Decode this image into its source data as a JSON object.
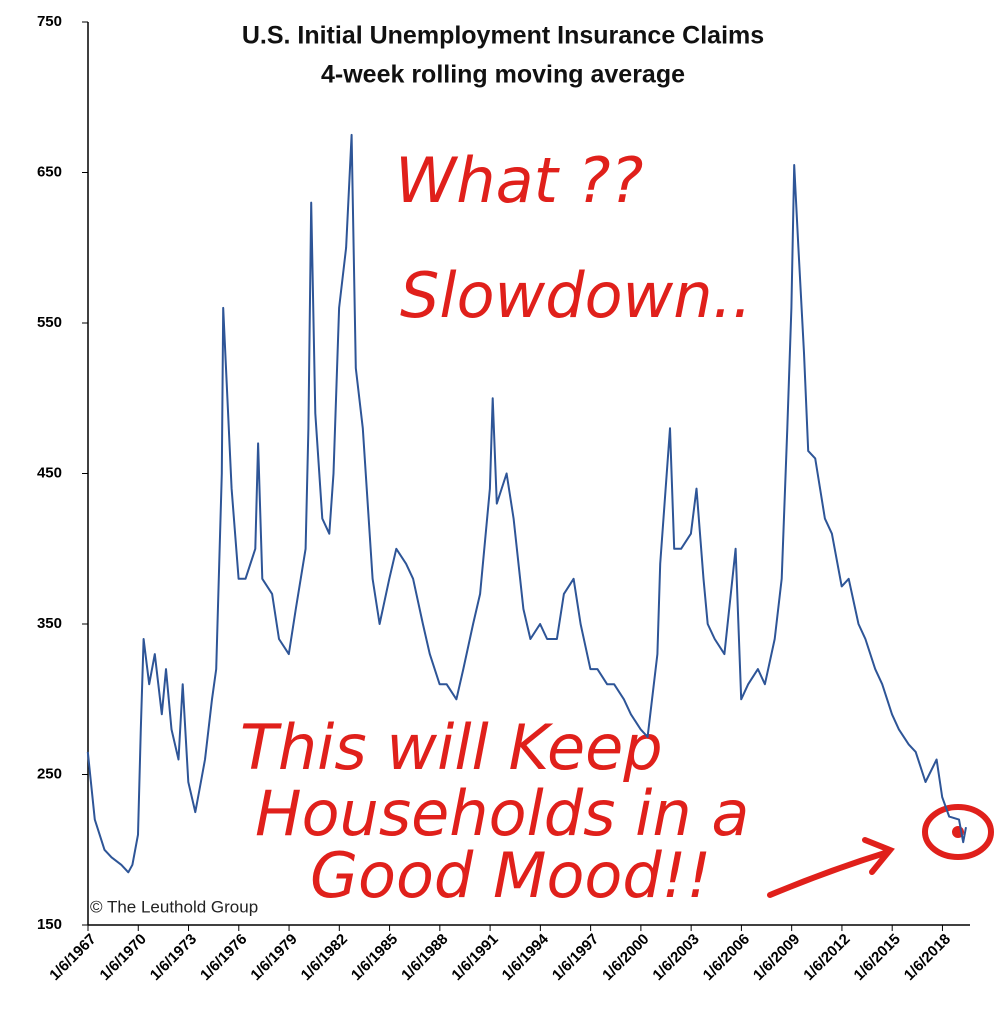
{
  "chart_data": {
    "type": "line",
    "title": "U.S. Initial Unemployment Insurance Claims",
    "subtitle": "4-week rolling moving average",
    "source": "© The Leuthold Group",
    "annotations": [
      "What ??",
      "Slowdown..",
      "This will Keep",
      "Households in a",
      "Good Mood!!"
    ],
    "x": [
      "1967-01",
      "1967-06",
      "1968-01",
      "1968-06",
      "1969-01",
      "1969-06",
      "1969-09",
      "1970-01",
      "1970-03",
      "1970-05",
      "1970-09",
      "1971-01",
      "1971-06",
      "1971-09",
      "1972-01",
      "1972-06",
      "1972-09",
      "1973-01",
      "1973-06",
      "1973-09",
      "1974-01",
      "1974-06",
      "1974-09",
      "1975-01",
      "1975-02",
      "1975-05",
      "1975-08",
      "1976-01",
      "1976-06",
      "1977-01",
      "1977-03",
      "1977-06",
      "1978-01",
      "1978-06",
      "1979-01",
      "1979-06",
      "1980-01",
      "1980-03",
      "1980-05",
      "1980-08",
      "1981-01",
      "1981-06",
      "1981-09",
      "1982-01",
      "1982-06",
      "1982-10",
      "1983-01",
      "1983-06",
      "1984-01",
      "1984-06",
      "1985-01",
      "1985-06",
      "1986-01",
      "1986-06",
      "1987-01",
      "1987-06",
      "1988-01",
      "1988-06",
      "1989-01",
      "1989-06",
      "1990-01",
      "1990-06",
      "1991-01",
      "1991-03",
      "1991-06",
      "1992-01",
      "1992-06",
      "1993-01",
      "1993-06",
      "1994-01",
      "1994-06",
      "1995-01",
      "1995-06",
      "1996-01",
      "1996-06",
      "1997-01",
      "1997-06",
      "1998-01",
      "1998-06",
      "1999-01",
      "1999-06",
      "2000-01",
      "2000-06",
      "2001-01",
      "2001-03",
      "2001-10",
      "2002-01",
      "2002-06",
      "2003-01",
      "2003-05",
      "2003-10",
      "2004-01",
      "2004-06",
      "2005-01",
      "2005-09",
      "2006-01",
      "2006-06",
      "2007-01",
      "2007-06",
      "2008-01",
      "2008-06",
      "2008-10",
      "2009-01",
      "2009-03",
      "2009-06",
      "2009-10",
      "2010-01",
      "2010-06",
      "2011-01",
      "2011-06",
      "2012-01",
      "2012-06",
      "2013-01",
      "2013-06",
      "2014-01",
      "2014-06",
      "2015-01",
      "2015-06",
      "2016-01",
      "2016-06",
      "2017-01",
      "2017-09",
      "2018-01",
      "2018-06",
      "2019-01",
      "2019-04",
      "2019-06"
    ],
    "series": [
      {
        "name": "Initial claims",
        "color": "#2e5597",
        "values": [
          265,
          220,
          200,
          195,
          190,
          185,
          190,
          210,
          280,
          340,
          310,
          330,
          290,
          320,
          280,
          260,
          310,
          245,
          225,
          240,
          260,
          300,
          320,
          450,
          560,
          500,
          440,
          380,
          380,
          400,
          470,
          380,
          370,
          340,
          330,
          360,
          400,
          480,
          630,
          490,
          420,
          410,
          450,
          560,
          600,
          675,
          520,
          480,
          380,
          350,
          380,
          400,
          390,
          380,
          350,
          330,
          310,
          310,
          300,
          320,
          350,
          370,
          440,
          500,
          430,
          450,
          420,
          360,
          340,
          350,
          340,
          340,
          370,
          380,
          350,
          320,
          320,
          310,
          310,
          300,
          290,
          280,
          275,
          330,
          390,
          480,
          400,
          400,
          410,
          440,
          380,
          350,
          340,
          330,
          400,
          300,
          310,
          320,
          310,
          340,
          380,
          480,
          560,
          655,
          600,
          530,
          465,
          460,
          420,
          410,
          375,
          380,
          350,
          340,
          320,
          310,
          290,
          280,
          270,
          265,
          245,
          260,
          235,
          222,
          220,
          205,
          215
        ]
      }
    ],
    "xlim": [
      "1967-01-06",
      "2019-07-15"
    ],
    "xticks": [
      {
        "value": "1967-01-06",
        "label": "1/6/1967"
      },
      {
        "value": "1970-01-06",
        "label": "1/6/1970"
      },
      {
        "value": "1973-01-06",
        "label": "1/6/1973"
      },
      {
        "value": "1976-01-06",
        "label": "1/6/1976"
      },
      {
        "value": "1979-01-06",
        "label": "1/6/1979"
      },
      {
        "value": "1982-01-06",
        "label": "1/6/1982"
      },
      {
        "value": "1985-01-06",
        "label": "1/6/1985"
      },
      {
        "value": "1988-01-06",
        "label": "1/6/1988"
      },
      {
        "value": "1991-01-06",
        "label": "1/6/1991"
      },
      {
        "value": "1994-01-06",
        "label": "1/6/1994"
      },
      {
        "value": "1997-01-06",
        "label": "1/6/1997"
      },
      {
        "value": "2000-01-06",
        "label": "1/6/2000"
      },
      {
        "value": "2003-01-06",
        "label": "1/6/2003"
      },
      {
        "value": "2006-01-06",
        "label": "1/6/2006"
      },
      {
        "value": "2009-01-06",
        "label": "1/6/2009"
      },
      {
        "value": "2012-01-06",
        "label": "1/6/2012"
      },
      {
        "value": "2015-01-06",
        "label": "1/6/2015"
      },
      {
        "value": "2018-01-06",
        "label": "1/6/2018"
      }
    ],
    "ylim": [
      150,
      750
    ],
    "yticks": [
      150,
      250,
      350,
      450,
      550,
      650,
      750
    ],
    "grid": false
  }
}
